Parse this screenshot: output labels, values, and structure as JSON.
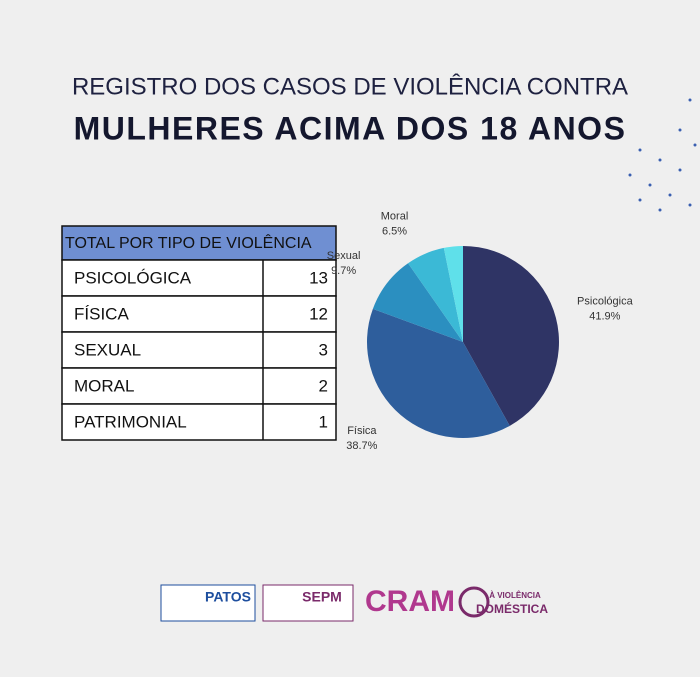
{
  "header": {
    "line1": "REGISTRO DOS CASOS DE VIOLÊNCIA CONTRA",
    "line2": "MULHERES ACIMA DOS 18 ANOS"
  },
  "table": {
    "header": "TOTAL POR TIPO DE VIOLÊNCIA",
    "rows": [
      [
        "PSICOLÓGICA",
        13
      ],
      [
        "FÍSICA",
        12
      ],
      [
        "SEXUAL",
        3
      ],
      [
        "MORAL",
        2
      ],
      [
        "PATRIMONIAL",
        1
      ]
    ]
  },
  "chart_data": {
    "type": "pie",
    "categories": [
      "Psicológica",
      "Física",
      "Sexual",
      "Moral",
      null
    ],
    "values": [
      41.9,
      38.7,
      9.7,
      6.5,
      3.2
    ],
    "value_labels": [
      "41.9%",
      "38.7%",
      "9.7%",
      "6.5%",
      null
    ],
    "colors": [
      "#2f3465",
      "#2e5e9c",
      "#2b8fc0",
      "#3bb9d6",
      "#5fe0ea"
    ]
  },
  "logos": [
    "PATOS",
    "SEPM",
    "CRAM",
    "À VIOLÊNCIA",
    "DOMÉSTICA"
  ]
}
